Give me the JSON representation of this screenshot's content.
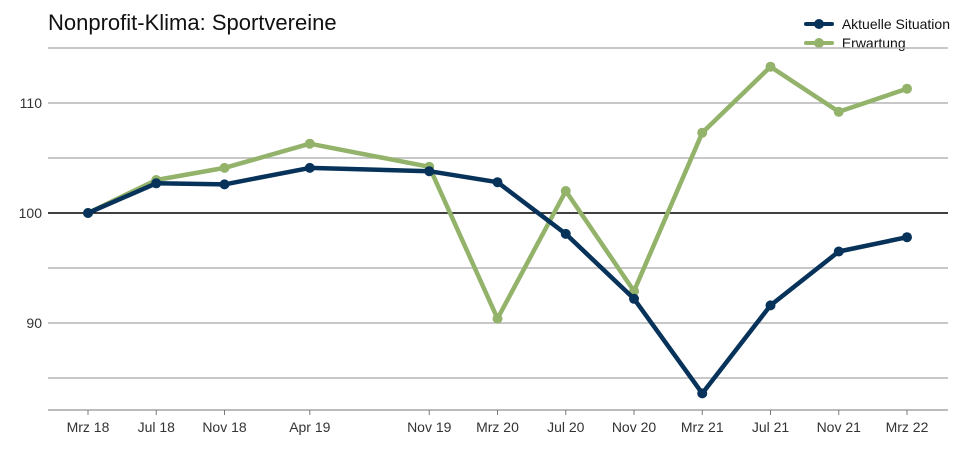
{
  "chart_data": {
    "type": "line",
    "title": "Nonprofit-Klima: Sportvereine",
    "xlabel": "",
    "ylabel": "",
    "x": [
      "Mrz 18",
      "Jul 18",
      "Nov 18",
      "Apr 19",
      "Nov 19",
      "Mrz 20",
      "Jul 20",
      "Nov 20",
      "Mrz 21",
      "Jul 21",
      "Nov 21",
      "Mrz 22"
    ],
    "x_months": [
      0,
      4,
      8,
      13,
      20,
      24,
      28,
      32,
      36,
      40,
      44,
      48
    ],
    "series": [
      {
        "name": "Aktuelle Situation",
        "color": "#07325a",
        "values": [
          100,
          102.7,
          102.6,
          104.1,
          103.8,
          102.8,
          98.1,
          92.2,
          83.6,
          91.6,
          96.5,
          97.8
        ]
      },
      {
        "name": "Erwartung",
        "color": "#93b26a",
        "values": [
          100,
          103.0,
          104.1,
          106.3,
          104.2,
          90.4,
          102.0,
          92.9,
          107.3,
          113.3,
          109.2,
          111.3
        ]
      }
    ],
    "yticks": [
      90,
      100,
      110
    ],
    "ylim": [
      82,
      116
    ],
    "reference_line": 100,
    "grid": true,
    "legend": "top-right"
  }
}
